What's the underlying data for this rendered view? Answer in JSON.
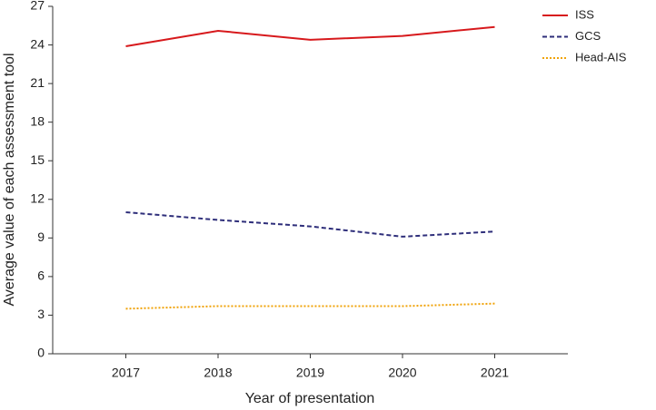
{
  "chart_data": {
    "type": "line",
    "x_label": "Year of presentation",
    "y_label": "Average value of each assessment tool",
    "categories": [
      "2017",
      "2018",
      "2019",
      "2020",
      "2021"
    ],
    "series": [
      {
        "name": "ISS",
        "color": "#d7191c",
        "style": "solid",
        "values": [
          23.9,
          25.1,
          24.4,
          24.7,
          25.4
        ]
      },
      {
        "name": "GCS",
        "color": "#2e2e7a",
        "style": "dashed",
        "values": [
          11.0,
          10.4,
          9.9,
          9.1,
          9.5
        ]
      },
      {
        "name": "Head-AIS",
        "color": "#f0a30a",
        "style": "dotted",
        "values": [
          3.5,
          3.7,
          3.7,
          3.7,
          3.9
        ]
      }
    ],
    "ylim": [
      0,
      27
    ],
    "yticks": [
      0,
      3,
      6,
      9,
      12,
      15,
      18,
      21,
      24,
      27
    ],
    "legend": "top-right"
  }
}
